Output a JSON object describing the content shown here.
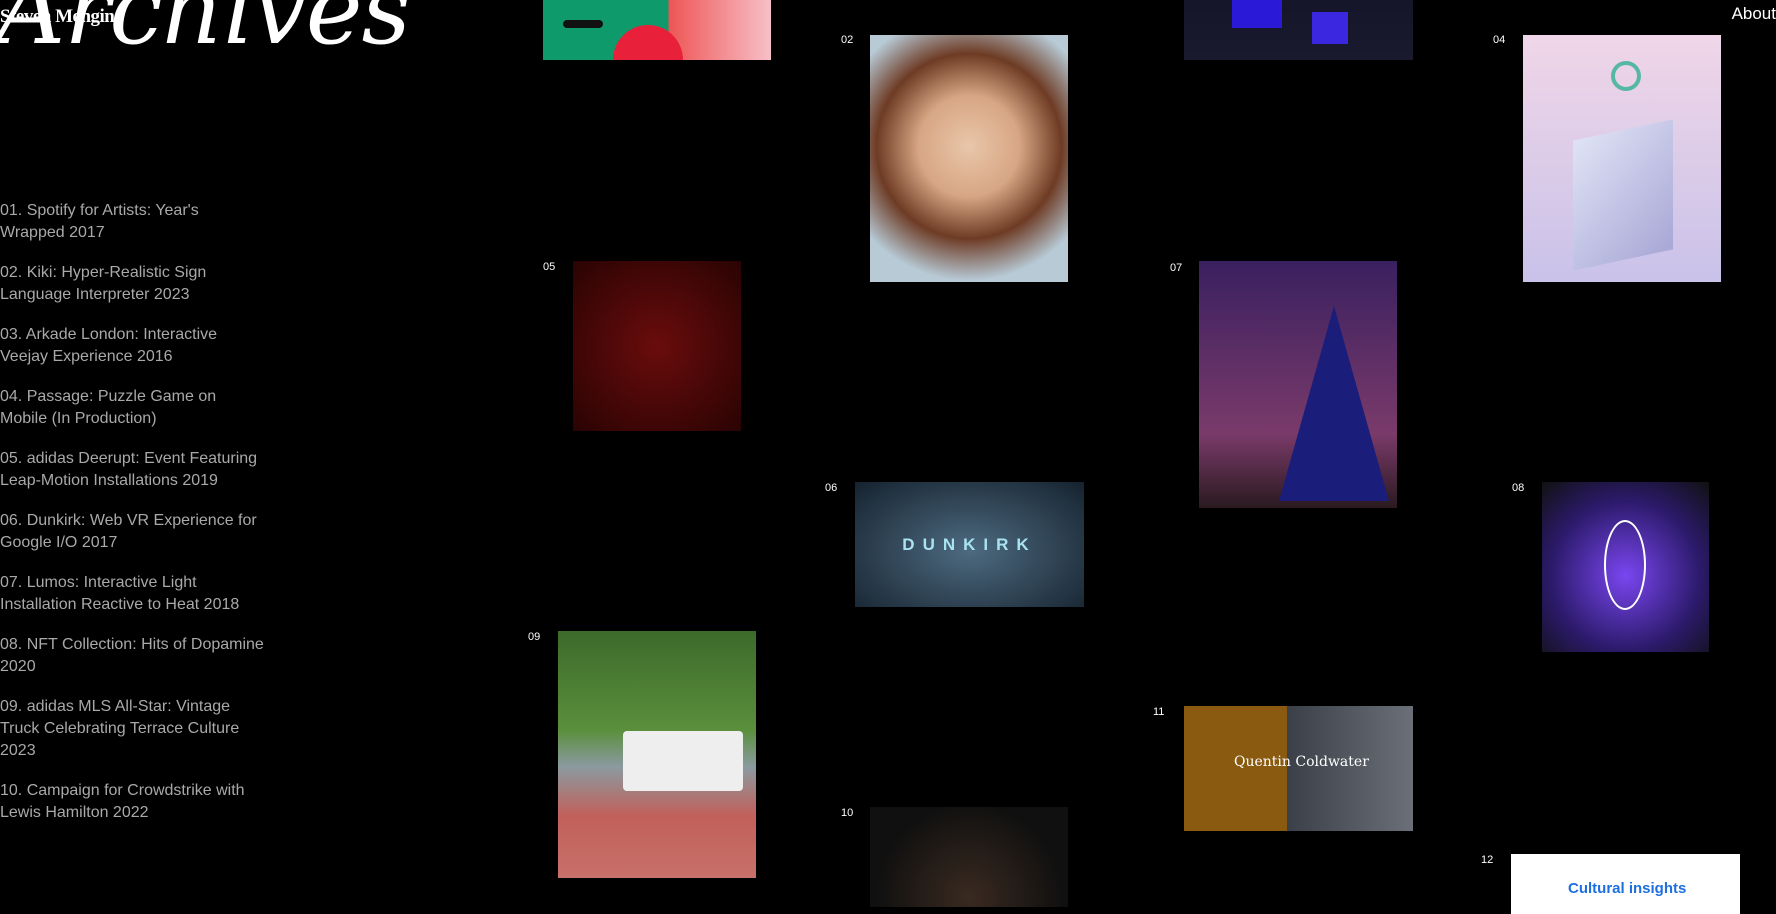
{
  "header": {
    "hero_title": "Archives",
    "brand": "Steven Mengin",
    "about_link": "About"
  },
  "projects": [
    {
      "label": "01. Spotify for Artists: Year's Wrapped 2017"
    },
    {
      "label": "02. Kiki: Hyper-Realistic Sign Language Interpreter 2023"
    },
    {
      "label": "03. Arkade London: Interactive Veejay Experience 2016"
    },
    {
      "label": "04. Passage: Puzzle Game on Mobile (In Production)"
    },
    {
      "label": "05. adidas Deerupt: Event Featuring Leap-Motion Installations 2019"
    },
    {
      "label": "06. Dunkirk: Web VR Experience for Google I/O 2017"
    },
    {
      "label": "07. Lumos: Interactive Light Installation Reactive to Heat 2018"
    },
    {
      "label": "08. NFT Collection: Hits of Dopamine 2020"
    },
    {
      "label": "09. adidas MLS All-Star: Vintage Truck Celebrating Terrace Culture 2023"
    },
    {
      "label": "10. Campaign for Crowdstrike with Lewis Hamilton 2022"
    }
  ],
  "gallery": {
    "n02": "02",
    "n04": "04",
    "n05": "05",
    "n06": "06",
    "n07": "07",
    "n08": "08",
    "n09": "09",
    "n10": "10",
    "n11": "11",
    "n12": "12",
    "dunkirk_text": "DUNKIRK",
    "quentin_text": "Quentin Coldwater",
    "crowdstrike_text": "Cultural insights"
  }
}
